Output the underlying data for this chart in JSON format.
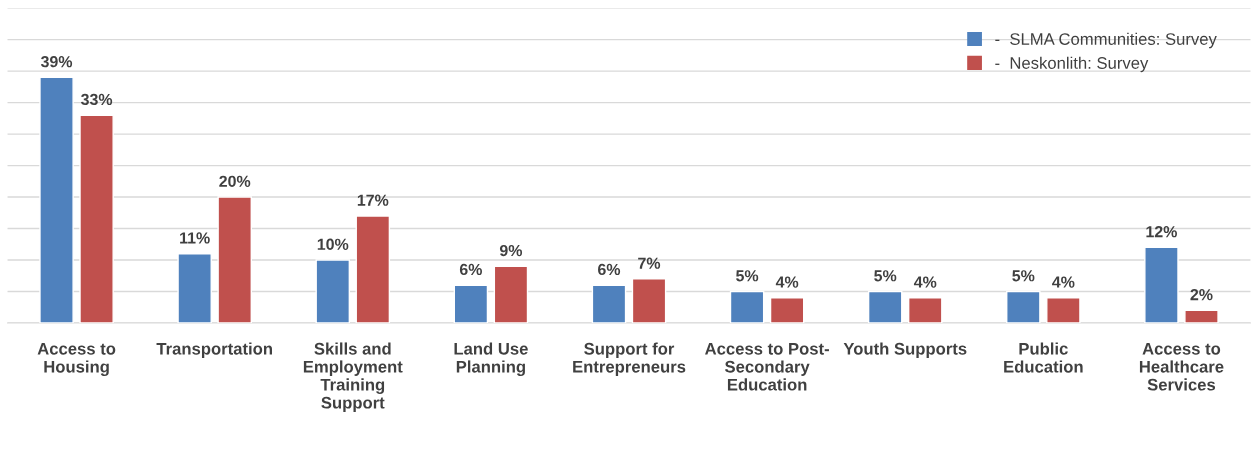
{
  "chart_data": {
    "type": "bar",
    "categories": [
      "Access to Housing",
      "Transportation",
      "Skills and Employment Training Support",
      "Land Use Planning",
      "Support for Entrepreneurs",
      "Access to Post-Secondary Education",
      "Youth Supports",
      "Public Education",
      "Access to Healthcare Services"
    ],
    "series": [
      {
        "name": "-  SLMA Communities: Survey",
        "color": "#4f81bd",
        "values": [
          39,
          11,
          10,
          6,
          6,
          5,
          5,
          5,
          12
        ],
        "value_labels": [
          "39%",
          "11%",
          "10%",
          "6%",
          "6%",
          "5%",
          "5%",
          "5%",
          "12%"
        ]
      },
      {
        "name": "-  Neskonlith: Survey",
        "color": "#c0504d",
        "values": [
          33,
          20,
          17,
          9,
          7,
          4,
          4,
          4,
          2
        ],
        "value_labels": [
          "33%",
          "20%",
          "17%",
          "9%",
          "7%",
          "4%",
          "4%",
          "4%",
          "2%"
        ]
      }
    ],
    "ylim": [
      0,
      50
    ],
    "yticks": [
      {
        "value": 0,
        "label": null
      },
      {
        "value": 5,
        "label": null
      },
      {
        "value": 10,
        "label": null
      },
      {
        "value": 15,
        "label": null
      },
      {
        "value": 20,
        "label": null
      },
      {
        "value": 25,
        "label": null
      },
      {
        "value": 30,
        "label": null
      },
      {
        "value": 35,
        "label": null
      },
      {
        "value": 40,
        "label": null
      },
      {
        "value": 45,
        "label": null
      },
      {
        "value": 50,
        "label": null
      }
    ],
    "grid": "y",
    "legend": "top right",
    "tick_labels": "x"
  }
}
